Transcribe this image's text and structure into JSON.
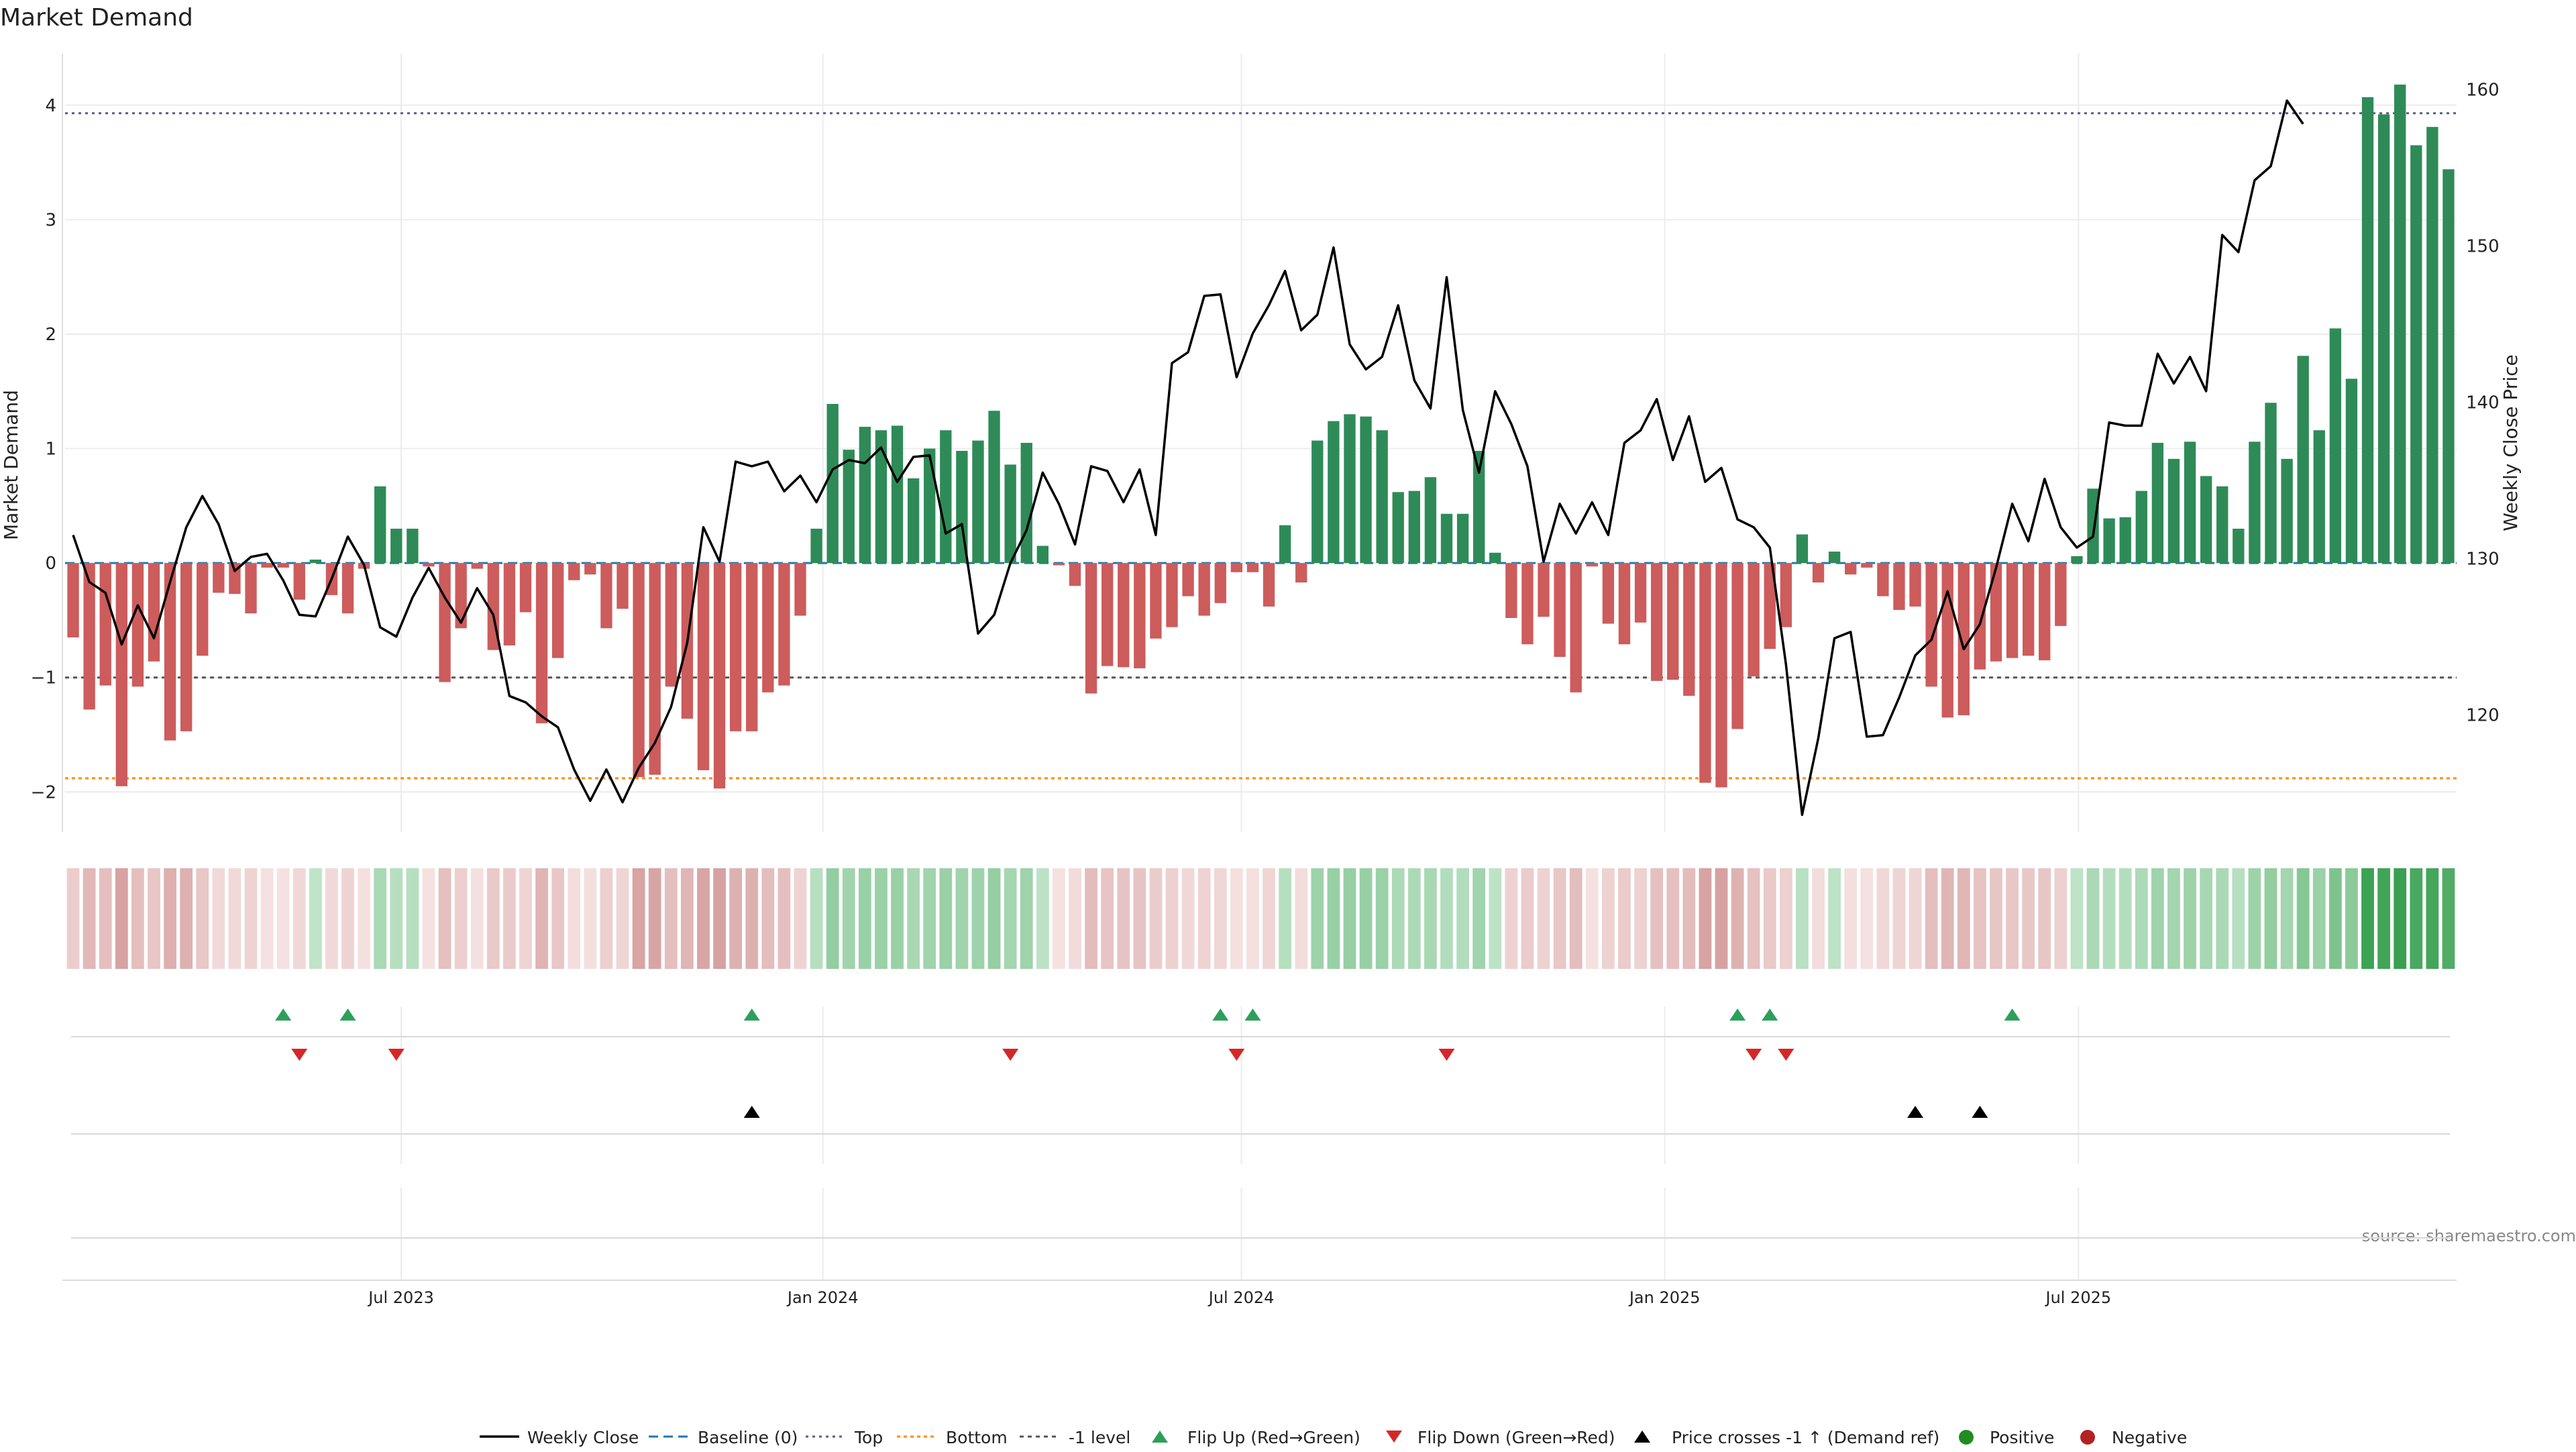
{
  "chart_data": {
    "type": "bar",
    "title": "Market Demand",
    "ylabel": "Market Demand",
    "y2label": "Weekly Close Price",
    "ylim": [
      -2.35,
      4.45
    ],
    "y2lim": [
      112.5,
      162.3
    ],
    "yticks": [
      "4",
      "3",
      "2",
      "1",
      "0",
      "−1",
      "−2"
    ],
    "y2ticks": [
      "160",
      "150",
      "140",
      "130",
      "120"
    ],
    "x_ticks": [
      "Jul 2023",
      "Jan 2024",
      "Jul 2024",
      "Jan 2025",
      "Jul 2025"
    ],
    "reference_lines": {
      "top": 3.93,
      "bottom": -1.88,
      "minus_one": -1.0,
      "baseline": 0
    },
    "series": [
      {
        "name": "Market Demand",
        "values": [
          -0.65,
          -1.28,
          -1.07,
          -1.95,
          -1.08,
          -0.86,
          -1.55,
          -1.47,
          -0.81,
          -0.26,
          -0.27,
          -0.44,
          -0.04,
          -0.04,
          -0.32,
          0.03,
          -0.28,
          -0.44,
          -0.05,
          0.67,
          0.3,
          0.3,
          -0.03,
          -1.04,
          -0.57,
          -0.05,
          -0.76,
          -0.72,
          -0.43,
          -1.4,
          -0.83,
          -0.15,
          -0.1,
          -0.57,
          -0.4,
          -1.87,
          -1.85,
          -1.08,
          -1.36,
          -1.81,
          -1.97,
          -1.47,
          -1.47,
          -1.13,
          -1.07,
          -0.46,
          0.3,
          1.39,
          0.99,
          1.19,
          1.16,
          1.2,
          0.74,
          1.0,
          1.16,
          0.98,
          1.07,
          1.33,
          0.86,
          1.05,
          0.15,
          -0.02,
          -0.2,
          -1.14,
          -0.9,
          -0.91,
          -0.92,
          -0.66,
          -0.56,
          -0.29,
          -0.46,
          -0.35,
          -0.08,
          -0.08,
          -0.38,
          0.33,
          -0.17,
          1.07,
          1.24,
          1.3,
          1.28,
          1.16,
          0.62,
          0.63,
          0.75,
          0.43,
          0.43,
          0.98,
          0.09,
          -0.48,
          -0.71,
          -0.47,
          -0.82,
          -1.13,
          -0.03,
          -0.53,
          -0.71,
          -0.52,
          -1.03,
          -1.02,
          -1.16,
          -1.92,
          -1.96,
          -1.45,
          -0.99,
          -0.75,
          -0.56,
          0.25,
          -0.17,
          0.1,
          -0.1,
          -0.04,
          -0.29,
          -0.41,
          -0.38,
          -1.08,
          -1.35,
          -1.33,
          -0.93,
          -0.86,
          -0.83,
          -0.81,
          -0.85,
          -0.55,
          0.06,
          0.65,
          0.39,
          0.4,
          0.63,
          1.05,
          0.91,
          1.06,
          0.76,
          0.67,
          0.3,
          1.06,
          1.4,
          0.91,
          1.81,
          1.16,
          2.05,
          1.61,
          4.07,
          3.92,
          4.18,
          3.65,
          3.81,
          3.44
        ]
      },
      {
        "name": "Weekly Close",
        "values": [
          131.5,
          128.5,
          127.8,
          124.5,
          127,
          124.9,
          128.5,
          132,
          134,
          132.2,
          129.2,
          130.1,
          130.3,
          128.6,
          126.4,
          126.3,
          128.7,
          131.4,
          129.6,
          125.6,
          125,
          127.5,
          129.4,
          127.5,
          125.9,
          128.1,
          126.4,
          121.2,
          120.8,
          119.9,
          119.2,
          116.5,
          114.5,
          116.5,
          114.4,
          116.6,
          118.2,
          120.5,
          124.6,
          132,
          129.8,
          136.2,
          135.9,
          136.2,
          134.3,
          135.3,
          133.6,
          135.7,
          136.3,
          136.1,
          137.1,
          134.9,
          136.5,
          136.6,
          131.6,
          132.2,
          125.2,
          126.4,
          129.7,
          131.8,
          135.5,
          133.5,
          130.9,
          135.9,
          135.6,
          133.6,
          135.7,
          131.5,
          142.5,
          143.2,
          146.8,
          146.9,
          141.6,
          144.4,
          146.2,
          148.4,
          144.6,
          145.6,
          149.9,
          143.7,
          142.1,
          142.9,
          146.2,
          141.4,
          139.6,
          148,
          139.5,
          135.5,
          140.7,
          138.6,
          135.9,
          129.8,
          133.5,
          131.6,
          133.6,
          131.5,
          137.4,
          138.2,
          140.2,
          136.3,
          139.1,
          134.9,
          135.8,
          132.5,
          132,
          130.7,
          123.2,
          113.6,
          118.5,
          124.9,
          125.3,
          118.6,
          118.7,
          121.1,
          123.8,
          124.8,
          127.9,
          124.2,
          125.8,
          129.4,
          133.5,
          131.1,
          135.1,
          132,
          130.7,
          131.4,
          138.7,
          138.5,
          138.5,
          143.1,
          141.2,
          142.9,
          140.7,
          150.7,
          149.6,
          154.2,
          155.1,
          159.3,
          157.8
        ]
      }
    ],
    "flip_up_events": [
      13,
      17,
      42,
      71,
      73,
      103,
      105,
      120
    ],
    "flip_down_events": [
      14,
      20,
      58,
      72,
      85,
      104,
      106
    ],
    "price_cross_events": [
      42,
      114,
      118
    ],
    "legend": {
      "position": "bottom-center",
      "items": [
        "Weekly Close",
        "Baseline (0)",
        "Top",
        "Bottom",
        "-1 level",
        "Flip Up (Red→Green)",
        "Flip Down (Green→Red)",
        "Price crosses -1 ↑ (Demand ref)",
        "Positive",
        "Negative"
      ]
    },
    "source": "source: sharemaestro.com"
  },
  "colors": {
    "positive": "#2e8b57",
    "negative": "#cd5c5c",
    "price": "#000000",
    "flip_up": "#2ca05a",
    "flip_down": "#d62728",
    "cross": "#000000",
    "top_line": "#5a5a8a",
    "bottom_line": "#ff8c00",
    "minus_one_line": "#555555",
    "baseline": "#1f77b4",
    "legend_positive": "#228b22",
    "legend_negative": "#b22222"
  }
}
